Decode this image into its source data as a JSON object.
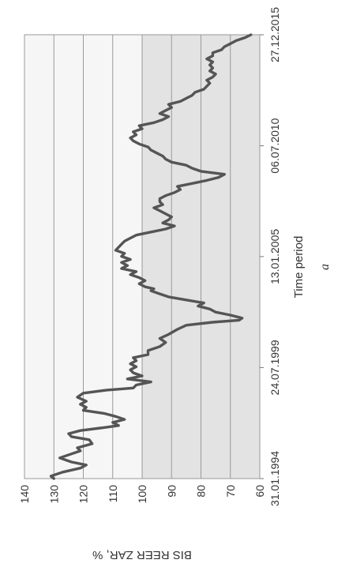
{
  "chart_data": {
    "type": "line",
    "orientation": "rotated-90-clockwise",
    "ylabel": "BIS REER ZAR, %",
    "xlabel": "Time period",
    "caption": "a",
    "ylim": [
      60,
      140
    ],
    "y_ticks": [
      60,
      70,
      80,
      90,
      100,
      110,
      120,
      130,
      140
    ],
    "x_ticks": [
      "31.01.1994",
      "24.07.1999",
      "13.01.2005",
      "06.07.2010",
      "27.12.2015"
    ],
    "x_tick_years": [
      1994.08,
      1999.56,
      2005.04,
      2010.51,
      2015.99
    ],
    "xlim": [
      1994.08,
      2015.99
    ],
    "shaded_band": {
      "from": 60,
      "to": 100,
      "color": "#e3e3e3"
    },
    "light_band": {
      "from": 100,
      "to": 140,
      "color": "#f6f6f6"
    },
    "grid": true,
    "line_color": "#555555",
    "series": [
      {
        "points": [
          [
            1994.08,
            130
          ],
          [
            1994.2,
            131
          ],
          [
            1994.4,
            127
          ],
          [
            1994.6,
            121
          ],
          [
            1994.75,
            119
          ],
          [
            1994.9,
            124
          ],
          [
            1995.1,
            128
          ],
          [
            1995.3,
            124
          ],
          [
            1995.45,
            121
          ],
          [
            1995.6,
            122
          ],
          [
            1995.8,
            117
          ],
          [
            1996.0,
            118
          ],
          [
            1996.15,
            124
          ],
          [
            1996.3,
            125
          ],
          [
            1996.45,
            121
          ],
          [
            1996.6,
            113
          ],
          [
            1996.7,
            108
          ],
          [
            1996.85,
            110
          ],
          [
            1997.0,
            106
          ],
          [
            1997.15,
            109
          ],
          [
            1997.3,
            113
          ],
          [
            1997.45,
            120
          ],
          [
            1997.6,
            119
          ],
          [
            1997.75,
            121
          ],
          [
            1997.9,
            119
          ],
          [
            1998.1,
            122
          ],
          [
            1998.3,
            120
          ],
          [
            1998.45,
            112
          ],
          [
            1998.55,
            103
          ],
          [
            1998.7,
            102
          ],
          [
            1998.85,
            97
          ],
          [
            1999.0,
            105
          ],
          [
            1999.15,
            100
          ],
          [
            1999.3,
            103
          ],
          [
            1999.45,
            104
          ],
          [
            1999.6,
            102
          ],
          [
            1999.75,
            104
          ],
          [
            1999.9,
            102
          ],
          [
            2000.05,
            103
          ],
          [
            2000.2,
            98
          ],
          [
            2000.4,
            98
          ],
          [
            2000.6,
            94
          ],
          [
            2000.8,
            92
          ],
          [
            2001.0,
            94
          ],
          [
            2001.2,
            91
          ],
          [
            2001.45,
            88
          ],
          [
            2001.65,
            85
          ],
          [
            2001.8,
            76
          ],
          [
            2001.9,
            67
          ],
          [
            2002.0,
            66
          ],
          [
            2002.15,
            70
          ],
          [
            2002.3,
            75
          ],
          [
            2002.45,
            77
          ],
          [
            2002.6,
            81
          ],
          [
            2002.75,
            79
          ],
          [
            2002.9,
            85
          ],
          [
            2003.05,
            91
          ],
          [
            2003.2,
            94
          ],
          [
            2003.35,
            97
          ],
          [
            2003.45,
            96
          ],
          [
            2003.55,
            99
          ],
          [
            2003.7,
            101
          ],
          [
            2003.85,
            99
          ],
          [
            2004.0,
            101
          ],
          [
            2004.15,
            104
          ],
          [
            2004.3,
            102
          ],
          [
            2004.45,
            107
          ],
          [
            2004.6,
            105
          ],
          [
            2004.75,
            107
          ],
          [
            2004.9,
            104
          ],
          [
            2005.05,
            107
          ],
          [
            2005.2,
            106
          ],
          [
            2005.35,
            109
          ],
          [
            2005.5,
            108
          ],
          [
            2005.65,
            107
          ],
          [
            2005.8,
            106
          ],
          [
            2005.95,
            104
          ],
          [
            2006.1,
            102
          ],
          [
            2006.25,
            97
          ],
          [
            2006.4,
            92
          ],
          [
            2006.55,
            89
          ],
          [
            2006.7,
            93
          ],
          [
            2006.85,
            91
          ],
          [
            2007.0,
            90
          ],
          [
            2007.15,
            92
          ],
          [
            2007.3,
            94
          ],
          [
            2007.45,
            96
          ],
          [
            2007.6,
            93
          ],
          [
            2007.75,
            94
          ],
          [
            2007.9,
            94
          ],
          [
            2008.05,
            92
          ],
          [
            2008.2,
            89
          ],
          [
            2008.35,
            87
          ],
          [
            2008.5,
            88
          ],
          [
            2008.65,
            83
          ],
          [
            2008.8,
            78
          ],
          [
            2008.95,
            74
          ],
          [
            2009.1,
            72
          ],
          [
            2009.25,
            80
          ],
          [
            2009.4,
            83
          ],
          [
            2009.55,
            85
          ],
          [
            2009.7,
            90
          ],
          [
            2009.85,
            92
          ],
          [
            2010.0,
            93
          ],
          [
            2010.15,
            95
          ],
          [
            2010.3,
            97
          ],
          [
            2010.45,
            98
          ],
          [
            2010.6,
            101
          ],
          [
            2010.75,
            103
          ],
          [
            2010.9,
            104
          ],
          [
            2011.05,
            102
          ],
          [
            2011.2,
            103
          ],
          [
            2011.35,
            100
          ],
          [
            2011.5,
            101
          ],
          [
            2011.65,
            96
          ],
          [
            2011.8,
            93
          ],
          [
            2011.95,
            91
          ],
          [
            2012.1,
            94
          ],
          [
            2012.25,
            92
          ],
          [
            2012.4,
            90
          ],
          [
            2012.55,
            91
          ],
          [
            2012.7,
            87
          ],
          [
            2012.85,
            85
          ],
          [
            2013.0,
            83
          ],
          [
            2013.15,
            82
          ],
          [
            2013.3,
            79
          ],
          [
            2013.45,
            78
          ],
          [
            2013.6,
            77
          ],
          [
            2013.75,
            78
          ],
          [
            2013.9,
            76
          ],
          [
            2014.05,
            75
          ],
          [
            2014.2,
            77
          ],
          [
            2014.35,
            76
          ],
          [
            2014.5,
            77
          ],
          [
            2014.65,
            76
          ],
          [
            2014.8,
            78
          ],
          [
            2014.95,
            76
          ],
          [
            2015.1,
            76
          ],
          [
            2015.25,
            73
          ],
          [
            2015.4,
            72
          ],
          [
            2015.55,
            70
          ],
          [
            2015.7,
            68
          ],
          [
            2015.85,
            65
          ],
          [
            2015.99,
            63
          ]
        ]
      }
    ]
  }
}
